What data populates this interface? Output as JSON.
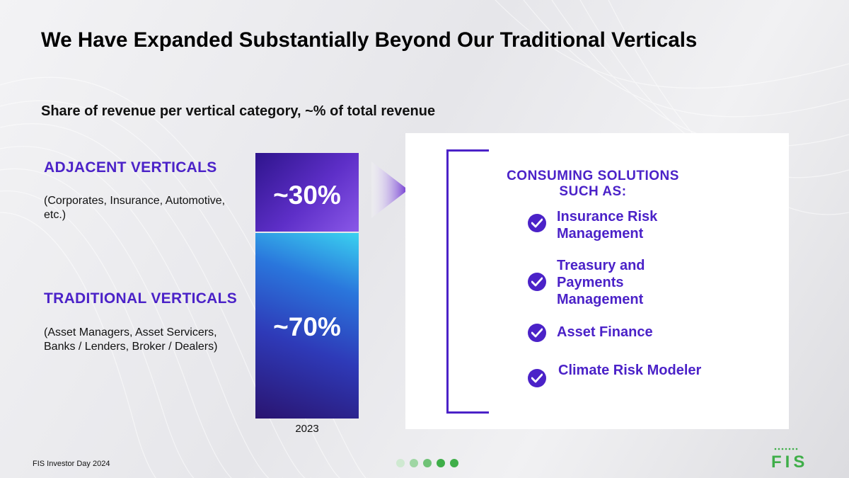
{
  "slide": {
    "title": "We Have Expanded Substantially Beyond Our Traditional Verticals",
    "footer": "FIS Investor Day 2024",
    "logo_text": "FIS"
  },
  "chart_data": {
    "type": "bar",
    "stacked": true,
    "title": "Share of revenue per vertical category, ~% of total revenue",
    "categories": [
      "2023"
    ],
    "series": [
      {
        "name": "TRADITIONAL VERTICALS",
        "description": "(Asset Managers, Asset Servicers, Banks / Lenders, Broker / Dealers)",
        "values": [
          70
        ],
        "label": "~70%",
        "color": "#2e3ab8"
      },
      {
        "name": "ADJACENT VERTICALS",
        "description": "(Corporates, Insurance, Automotive, etc.)",
        "values": [
          30
        ],
        "label": "~30%",
        "color": "#4b22c8"
      }
    ],
    "ylim": [
      0,
      100
    ],
    "legend": "left",
    "grid": false
  },
  "solutions": {
    "heading": "CONSUMING SOLUTIONS SUCH AS:",
    "items": [
      "Insurance Risk Management",
      "Treasury and Payments Management",
      "Asset Finance",
      "Climate Risk Modeler"
    ]
  },
  "colors": {
    "accent_purple": "#4b22c8",
    "brand_green": "#3fae49",
    "pagination_active": "#3fae49",
    "pagination_inactive": "#bfe3c2"
  },
  "pagination": {
    "total": 5,
    "active": 5
  }
}
